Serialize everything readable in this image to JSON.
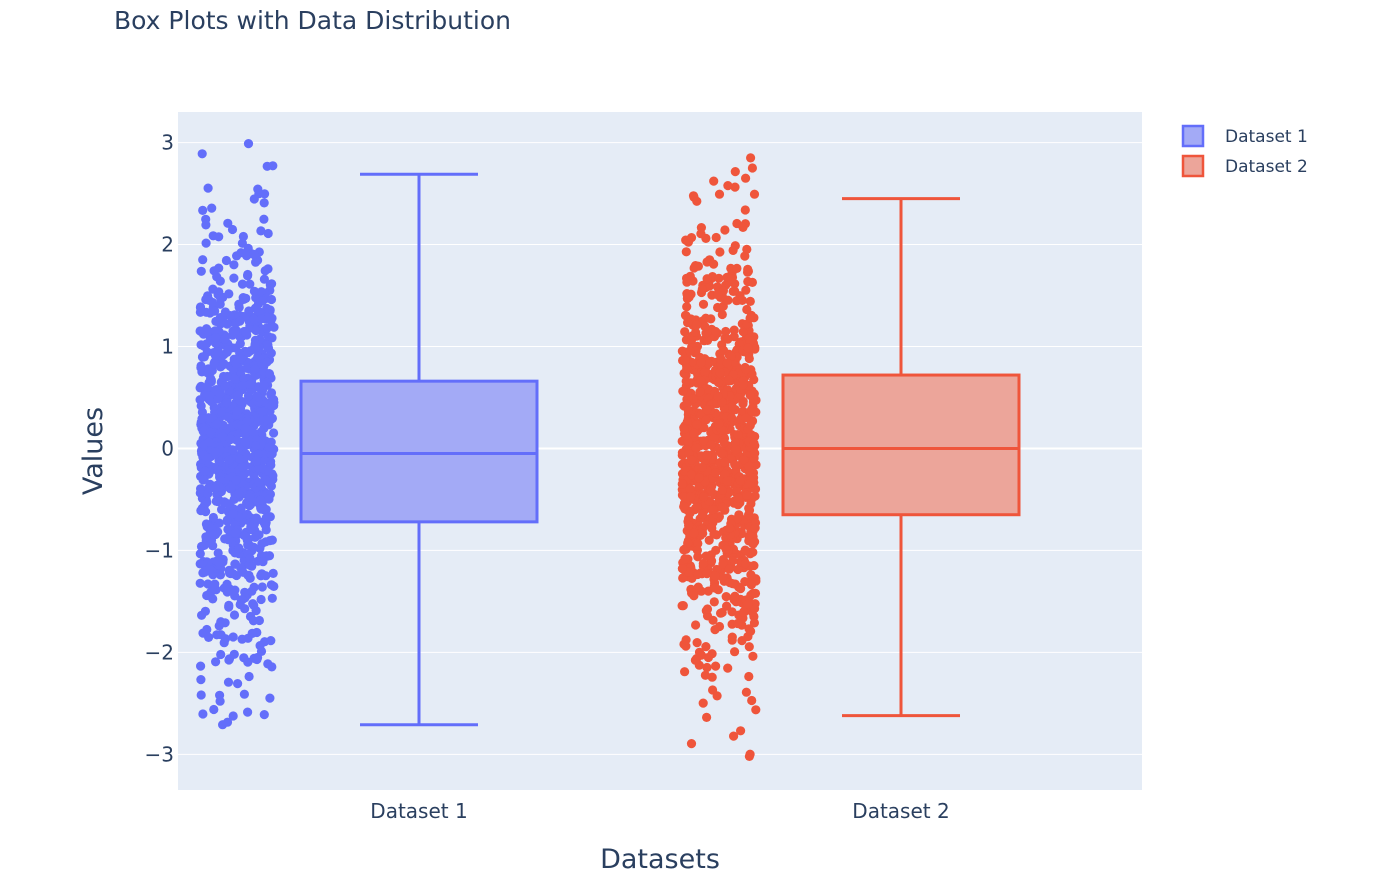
{
  "chart_data": {
    "type": "box",
    "title": "Box Plots with Data Distribution",
    "xlabel": "Datasets",
    "ylabel": "Values",
    "ylim": [
      -3.35,
      3.3
    ],
    "yticks": [
      3,
      2,
      1,
      0,
      -1,
      -2,
      -3
    ],
    "ytick_labels": [
      "3",
      "2",
      "1",
      "0",
      "−1",
      "−2",
      "−3"
    ],
    "categories": [
      "Dataset 1",
      "Dataset 2"
    ],
    "grid": true,
    "legend_position": "top-right",
    "show_points": "all",
    "series": [
      {
        "name": "Dataset 1",
        "color": "#636efa",
        "fill": "#a3aaf6",
        "box": {
          "min": -2.71,
          "q1": -0.72,
          "median": -0.05,
          "q3": 0.66,
          "max": 2.69
        },
        "point_count": 1000,
        "point_extremes": {
          "min": -2.71,
          "max": 2.99
        }
      },
      {
        "name": "Dataset 2",
        "color": "#ef553b",
        "fill": "#eca59a",
        "box": {
          "min": -2.62,
          "q1": -0.65,
          "median": 0.0,
          "q3": 0.72,
          "max": 2.45
        },
        "point_count": 1000,
        "point_extremes": {
          "min": -3.02,
          "max": 2.85
        }
      }
    ]
  }
}
